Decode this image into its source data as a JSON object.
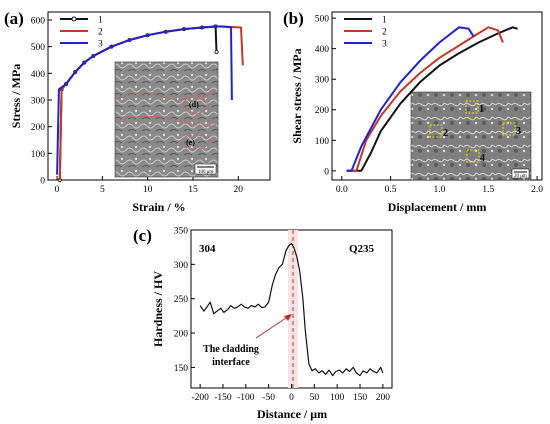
{
  "chart_data": [
    {
      "panel": "(a)",
      "type": "line",
      "xlabel": "Strain / %",
      "ylabel": "Stress / MPa",
      "xlim": [
        -1,
        23.5
      ],
      "ylim": [
        0,
        630
      ],
      "xticks": [
        0,
        5,
        10,
        15,
        20
      ],
      "yticks": [
        0,
        100,
        200,
        300,
        400,
        500,
        600
      ],
      "legend_placement": "top-left",
      "inset": {
        "type": "SEM fractograph",
        "labels": [
          "(d)",
          "(e)"
        ],
        "scale_bar": "100 μm"
      },
      "series": [
        {
          "name": "1",
          "color": "#111111",
          "markers": true,
          "points": [
            [
              0.3,
              0
            ],
            [
              0.5,
              340
            ],
            [
              1,
              360
            ],
            [
              2,
              405
            ],
            [
              3,
              440
            ],
            [
              4,
              465
            ],
            [
              6,
              500
            ],
            [
              8,
              525
            ],
            [
              10,
              543
            ],
            [
              12,
              556
            ],
            [
              14,
              566
            ],
            [
              16,
              572
            ],
            [
              17.5,
              576
            ],
            [
              17.6,
              480
            ]
          ]
        },
        {
          "name": "2",
          "color": "#c0392b",
          "markers": false,
          "points": [
            [
              0.3,
              0
            ],
            [
              0.5,
              340
            ],
            [
              1,
              360
            ],
            [
              2,
              405
            ],
            [
              3,
              440
            ],
            [
              4,
              465
            ],
            [
              6,
              500
            ],
            [
              8,
              525
            ],
            [
              10,
              543
            ],
            [
              12,
              556
            ],
            [
              14,
              566
            ],
            [
              16,
              572
            ],
            [
              18,
              576
            ],
            [
              20.3,
              572
            ],
            [
              20.5,
              430
            ]
          ]
        },
        {
          "name": "3",
          "color": "#2222cc",
          "markers": false,
          "points": [
            [
              0,
              20
            ],
            [
              0.2,
              340
            ],
            [
              1,
              360
            ],
            [
              2,
              405
            ],
            [
              3,
              440
            ],
            [
              4,
              465
            ],
            [
              6,
              500
            ],
            [
              8,
              525
            ],
            [
              10,
              543
            ],
            [
              12,
              556
            ],
            [
              14,
              566
            ],
            [
              16,
              572
            ],
            [
              18,
              576
            ],
            [
              19.2,
              573
            ],
            [
              19.3,
              300
            ]
          ]
        }
      ]
    },
    {
      "panel": "(b)",
      "type": "line",
      "xlabel": "Displacement / mm",
      "ylabel": "Shear stress / MPa",
      "xlim": [
        -0.1,
        2.05
      ],
      "ylim": [
        -30,
        520
      ],
      "xticks": [
        0.0,
        0.5,
        1.0,
        1.5,
        2.0
      ],
      "yticks": [
        0,
        100,
        200,
        300,
        400,
        500
      ],
      "legend_placement": "top-left",
      "inset": {
        "type": "SEM fractograph",
        "labels": [
          "1",
          "2",
          "3",
          "4"
        ],
        "scale_bar": "20 μm"
      },
      "series": [
        {
          "name": "1",
          "color": "#111111",
          "points": [
            [
              0.05,
              0
            ],
            [
              0.2,
              0
            ],
            [
              0.3,
              60
            ],
            [
              0.4,
              130
            ],
            [
              0.6,
              220
            ],
            [
              0.8,
              290
            ],
            [
              1.0,
              345
            ],
            [
              1.2,
              385
            ],
            [
              1.4,
              420
            ],
            [
              1.6,
              450
            ],
            [
              1.75,
              470
            ],
            [
              1.8,
              465
            ]
          ]
        },
        {
          "name": "2",
          "color": "#c0392b",
          "points": [
            [
              0.05,
              0
            ],
            [
              0.15,
              0
            ],
            [
              0.25,
              100
            ],
            [
              0.4,
              180
            ],
            [
              0.6,
              260
            ],
            [
              0.8,
              320
            ],
            [
              1.0,
              370
            ],
            [
              1.2,
              410
            ],
            [
              1.35,
              440
            ],
            [
              1.5,
              470
            ],
            [
              1.6,
              460
            ],
            [
              1.65,
              420
            ]
          ]
        },
        {
          "name": "3",
          "color": "#2222cc",
          "points": [
            [
              0.05,
              0
            ],
            [
              0.1,
              0
            ],
            [
              0.2,
              80
            ],
            [
              0.4,
              200
            ],
            [
              0.6,
              290
            ],
            [
              0.8,
              360
            ],
            [
              1.0,
              420
            ],
            [
              1.2,
              470
            ],
            [
              1.3,
              465
            ],
            [
              1.35,
              440
            ]
          ]
        }
      ]
    },
    {
      "panel": "(c)",
      "type": "line",
      "xlabel": "Distance / μm",
      "ylabel": "Hardness / HV",
      "xlim": [
        -220,
        220
      ],
      "ylim": [
        120,
        350
      ],
      "xticks": [
        -200,
        -150,
        -100,
        -50,
        0,
        50,
        100,
        150,
        200
      ],
      "yticks": [
        150,
        200,
        250,
        300,
        350
      ],
      "region_labels": {
        "left": "304",
        "right": "Q235"
      },
      "annotation": "The cladding\ninterface",
      "interface_x": 0,
      "series": [
        {
          "name": "",
          "color": "#111111",
          "points": [
            [
              -200,
              240
            ],
            [
              -192,
              232
            ],
            [
              -185,
              238
            ],
            [
              -178,
              245
            ],
            [
              -170,
              228
            ],
            [
              -163,
              232
            ],
            [
              -155,
              236
            ],
            [
              -148,
              230
            ],
            [
              -140,
              234
            ],
            [
              -133,
              240
            ],
            [
              -125,
              236
            ],
            [
              -118,
              238
            ],
            [
              -110,
              242
            ],
            [
              -103,
              238
            ],
            [
              -95,
              236
            ],
            [
              -88,
              240
            ],
            [
              -80,
              238
            ],
            [
              -73,
              242
            ],
            [
              -65,
              237
            ],
            [
              -58,
              238
            ],
            [
              -50,
              245
            ],
            [
              -42,
              270
            ],
            [
              -35,
              285
            ],
            [
              -28,
              295
            ],
            [
              -20,
              300
            ],
            [
              -12,
              320
            ],
            [
              -5,
              328
            ],
            [
              0,
              330
            ],
            [
              5,
              325
            ],
            [
              12,
              310
            ],
            [
              18,
              290
            ],
            [
              25,
              250
            ],
            [
              30,
              205
            ],
            [
              38,
              155
            ],
            [
              45,
              145
            ],
            [
              52,
              148
            ],
            [
              60,
              142
            ],
            [
              67,
              145
            ],
            [
              75,
              140
            ],
            [
              82,
              146
            ],
            [
              90,
              138
            ],
            [
              97,
              144
            ],
            [
              105,
              146
            ],
            [
              112,
              142
            ],
            [
              120,
              148
            ],
            [
              127,
              144
            ],
            [
              135,
              150
            ],
            [
              142,
              142
            ],
            [
              150,
              138
            ],
            [
              157,
              145
            ],
            [
              165,
              142
            ],
            [
              172,
              148
            ],
            [
              180,
              144
            ],
            [
              187,
              142
            ],
            [
              195,
              150
            ],
            [
              200,
              142
            ]
          ]
        }
      ]
    }
  ]
}
